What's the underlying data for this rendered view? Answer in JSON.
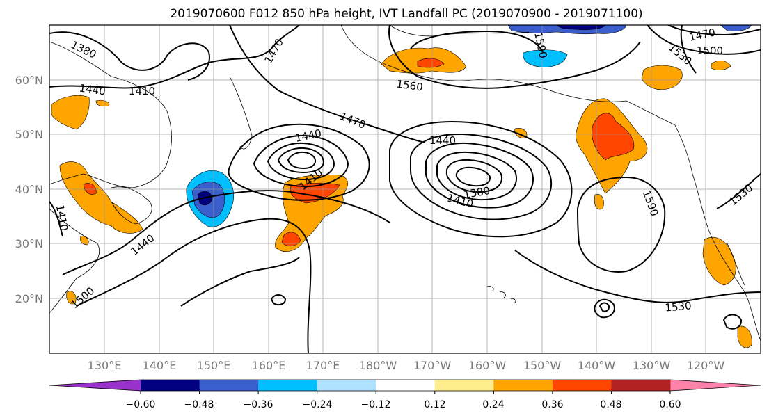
{
  "title": "2019070600 F012 850 hPa height, IVT Landfall PC (2019070900 - 2019071100)",
  "axes": {
    "lat_labels": [
      "60°N",
      "50°N",
      "40°N",
      "30°N",
      "20°N"
    ],
    "lon_labels": [
      "130°E",
      "140°E",
      "150°E",
      "160°E",
      "170°E",
      "180°W",
      "170°W",
      "160°W",
      "150°W",
      "140°W",
      "130°W",
      "120°W"
    ]
  },
  "contour_labels": [
    "1380",
    "1440",
    "1410",
    "1470",
    "1470",
    "1440",
    "1440",
    "1380",
    "1410",
    "1410",
    "1440",
    "1500",
    "1560",
    "1590",
    "1530",
    "1470",
    "1500",
    "1590",
    "1530",
    "1530",
    "1410"
  ],
  "colorbar": {
    "colors": [
      "#9932cc",
      "#000080",
      "#3a5fcd",
      "#00bfff",
      "#b0e2ff",
      "#ffffff",
      "#ffec8b",
      "#ffa500",
      "#ff4500",
      "#b22222",
      "#ff82ab"
    ],
    "tick_labels": [
      "−0.60",
      "−0.48",
      "−0.36",
      "−0.24",
      "−0.12",
      "0.12",
      "0.24",
      "0.36",
      "0.48",
      "0.60"
    ]
  }
}
